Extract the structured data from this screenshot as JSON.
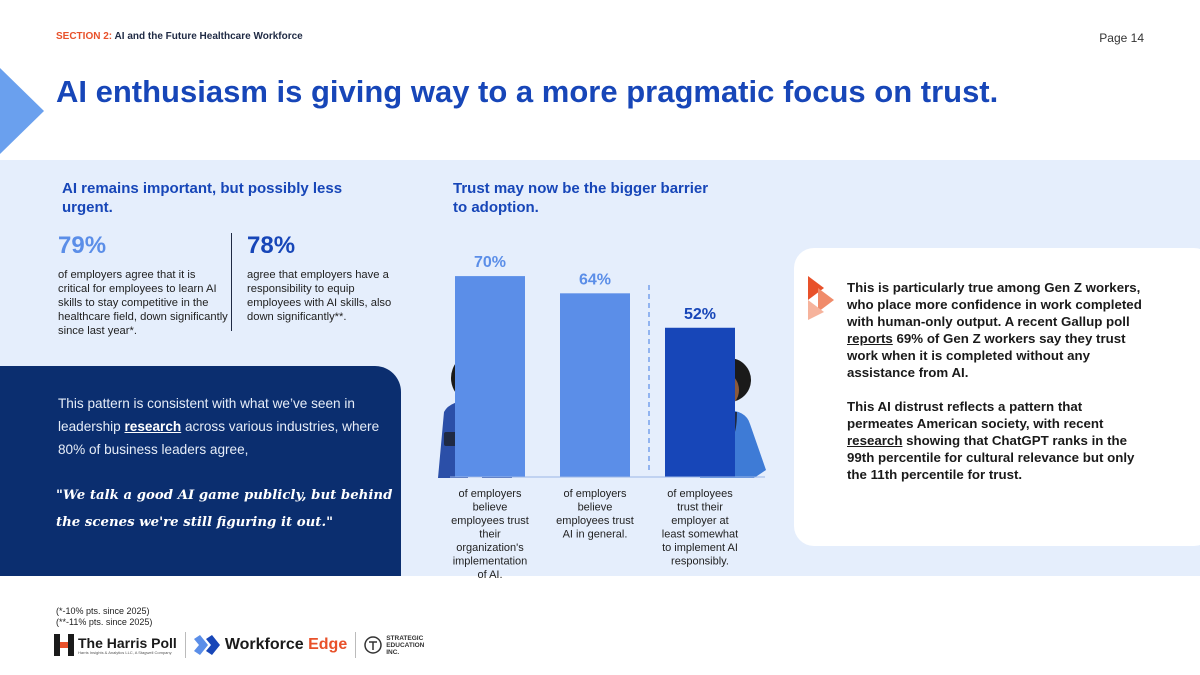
{
  "header": {
    "section_prefix": "SECTION 2:",
    "section_title": "AI and the Future Healthcare Workforce",
    "page": "Page 14"
  },
  "title": "AI enthusiasm is giving way to a more pragmatic focus on trust.",
  "left": {
    "heading": "AI remains important, but possibly less urgent.",
    "stat1": {
      "value": "79%",
      "text": "of employers agree that it is critical for employees to learn AI skills to stay competitive in the healthcare field, down significantly since last year*."
    },
    "stat2": {
      "value": "78%",
      "text": "agree that employers have a responsibility to equip employees with AI skills, also down significantly**."
    }
  },
  "callout": {
    "text_before": "This pattern is consistent with what we’ve seen in leadership ",
    "link": "research",
    "text_after": " across various industries, where 80% of business leaders agree,",
    "quote": "\"We talk a good AI game publicly, but behind the scenes we're still figuring it out.\""
  },
  "middle": {
    "heading": "Trust may now be the bigger barrier to adoption."
  },
  "chart_data": {
    "type": "bar",
    "categories": [
      "of employers believe employees trust their organization's implementation of AI.",
      "of employers believe employees trust AI in general.",
      "of employees trust their employer at least somewhat to implement AI responsibly."
    ],
    "values": [
      70,
      64,
      52
    ],
    "value_labels": [
      "70%",
      "64%",
      "52%"
    ],
    "ylim": [
      0,
      100
    ],
    "colors": [
      "#5b8ee8",
      "#5b8ee8",
      "#1746b8"
    ],
    "label_colors": [
      "#5b8ee8",
      "#5b8ee8",
      "#1746b8"
    ],
    "title": "",
    "xlabel": "",
    "ylabel": ""
  },
  "right": {
    "p1_before": "This is particularly true among Gen Z workers, who place more confidence in work completed with human-only output. A recent Gallup poll ",
    "p1_link": "reports",
    "p1_after": " 69% of Gen Z workers say they trust work when it is completed without any assistance from AI.",
    "p2_before": "This AI distrust reflects a pattern that permeates American society, with recent ",
    "p2_link": "research",
    "p2_after": " showing that ChatGPT ranks in the 99th percentile for cultural relevance but only the 11th percentile for trust."
  },
  "footnotes": {
    "line1": "(*-10% pts. since 2025)",
    "line2": "(**-11% pts. since 2025)"
  },
  "logos": {
    "harris_name": "The Harris Poll",
    "harris_sub": "Harris Insights & Analytics LLC, A Stagwell Company",
    "workforce_a": "Workforce ",
    "workforce_b": "Edge",
    "sei_1": "STRATEGIC",
    "sei_2": "EDUCATION",
    "sei_3": "INC."
  },
  "colors": {
    "brand_blue": "#1746b8",
    "light_blue": "#5b8ee8",
    "navy": "#0b2e6f",
    "band": "#e5eefc",
    "accent_orange": "#e8512a"
  }
}
